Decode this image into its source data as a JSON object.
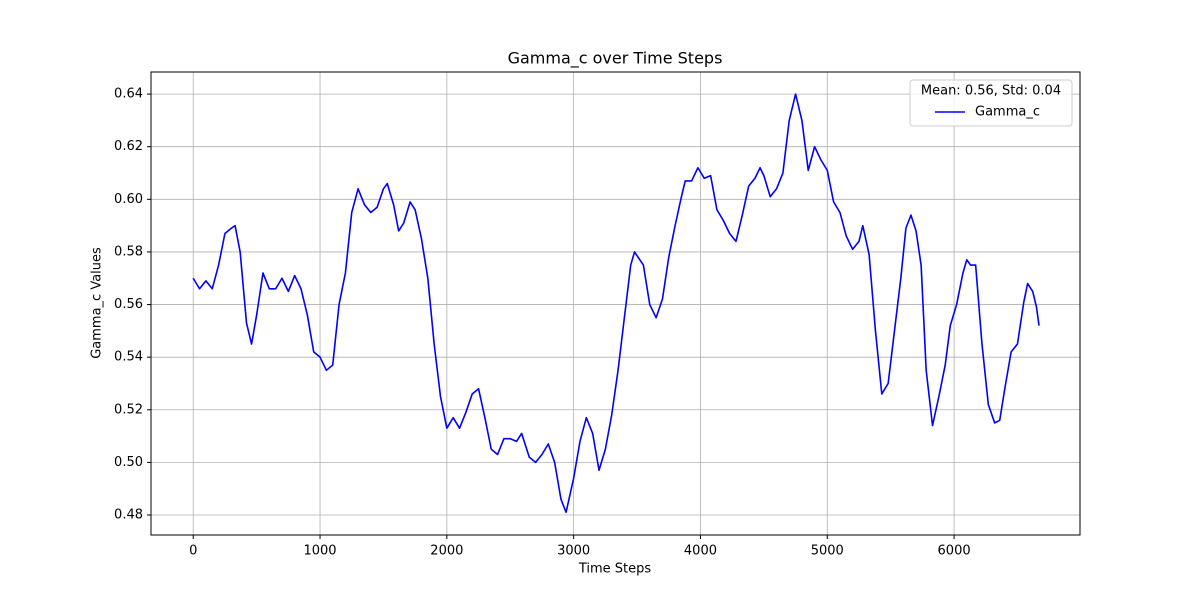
{
  "chart_data": {
    "type": "line",
    "title": "Gamma_c over Time Steps",
    "x_label": "Time Steps",
    "y_label": "Gamma_c Values",
    "x": [
      0,
      50,
      100,
      150,
      200,
      250,
      300,
      330,
      370,
      420,
      460,
      500,
      550,
      600,
      650,
      700,
      750,
      800,
      850,
      900,
      950,
      1000,
      1050,
      1100,
      1150,
      1200,
      1250,
      1300,
      1350,
      1400,
      1450,
      1500,
      1530,
      1580,
      1620,
      1660,
      1710,
      1750,
      1800,
      1850,
      1900,
      1950,
      2000,
      2050,
      2100,
      2150,
      2200,
      2250,
      2300,
      2350,
      2400,
      2450,
      2500,
      2550,
      2590,
      2650,
      2700,
      2750,
      2800,
      2850,
      2900,
      2940,
      3000,
      3050,
      3100,
      3150,
      3200,
      3250,
      3300,
      3350,
      3400,
      3450,
      3480,
      3550,
      3600,
      3650,
      3700,
      3750,
      3800,
      3850,
      3880,
      3930,
      3980,
      4030,
      4080,
      4130,
      4180,
      4230,
      4280,
      4330,
      4380,
      4430,
      4470,
      4500,
      4550,
      4600,
      4650,
      4700,
      4750,
      4800,
      4850,
      4900,
      4950,
      5000,
      5050,
      5100,
      5150,
      5200,
      5250,
      5280,
      5330,
      5380,
      5430,
      5480,
      5530,
      5580,
      5620,
      5660,
      5700,
      5740,
      5780,
      5830,
      5880,
      5930,
      5970,
      6020,
      6070,
      6100,
      6130,
      6170,
      6220,
      6270,
      6320,
      6360,
      6400,
      6450,
      6500,
      6550,
      6580,
      6620,
      6650,
      6670
    ],
    "series": [
      {
        "name": "Gamma_c",
        "color": "#0000ff",
        "values": [
          0.57,
          0.566,
          0.569,
          0.566,
          0.575,
          0.587,
          0.589,
          0.59,
          0.58,
          0.553,
          0.545,
          0.556,
          0.572,
          0.566,
          0.566,
          0.57,
          0.565,
          0.571,
          0.566,
          0.556,
          0.542,
          0.54,
          0.535,
          0.537,
          0.56,
          0.572,
          0.595,
          0.604,
          0.598,
          0.595,
          0.597,
          0.604,
          0.606,
          0.598,
          0.588,
          0.591,
          0.599,
          0.596,
          0.585,
          0.57,
          0.545,
          0.525,
          0.513,
          0.517,
          0.513,
          0.519,
          0.526,
          0.528,
          0.517,
          0.505,
          0.503,
          0.509,
          0.509,
          0.508,
          0.511,
          0.502,
          0.5,
          0.503,
          0.507,
          0.5,
          0.486,
          0.481,
          0.494,
          0.508,
          0.517,
          0.511,
          0.497,
          0.505,
          0.518,
          0.535,
          0.555,
          0.575,
          0.58,
          0.575,
          0.56,
          0.555,
          0.562,
          0.578,
          0.59,
          0.601,
          0.607,
          0.607,
          0.612,
          0.608,
          0.609,
          0.596,
          0.592,
          0.587,
          0.584,
          0.594,
          0.605,
          0.608,
          0.612,
          0.609,
          0.601,
          0.604,
          0.61,
          0.63,
          0.64,
          0.63,
          0.611,
          0.62,
          0.615,
          0.611,
          0.599,
          0.595,
          0.586,
          0.581,
          0.584,
          0.59,
          0.579,
          0.55,
          0.526,
          0.53,
          0.55,
          0.57,
          0.589,
          0.594,
          0.588,
          0.575,
          0.535,
          0.514,
          0.525,
          0.537,
          0.552,
          0.56,
          0.572,
          0.577,
          0.575,
          0.575,
          0.545,
          0.522,
          0.515,
          0.516,
          0.528,
          0.542,
          0.545,
          0.561,
          0.568,
          0.565,
          0.559,
          0.552
        ]
      }
    ],
    "legend_title": "Mean: 0.56, Std: 0.04",
    "legend_position": "upper right",
    "xlim": [
      -333,
      6993
    ],
    "ylim": [
      0.4724,
      0.6484
    ],
    "xticks": [
      0,
      1000,
      2000,
      3000,
      4000,
      5000,
      6000
    ],
    "yticks": [
      0.48,
      {
        "value": 0.5,
        "label": "0.50"
      },
      0.52,
      0.54,
      0.56,
      0.58,
      {
        "value": 0.6,
        "label": "0.60"
      },
      0.62,
      0.64
    ],
    "grid": true
  }
}
